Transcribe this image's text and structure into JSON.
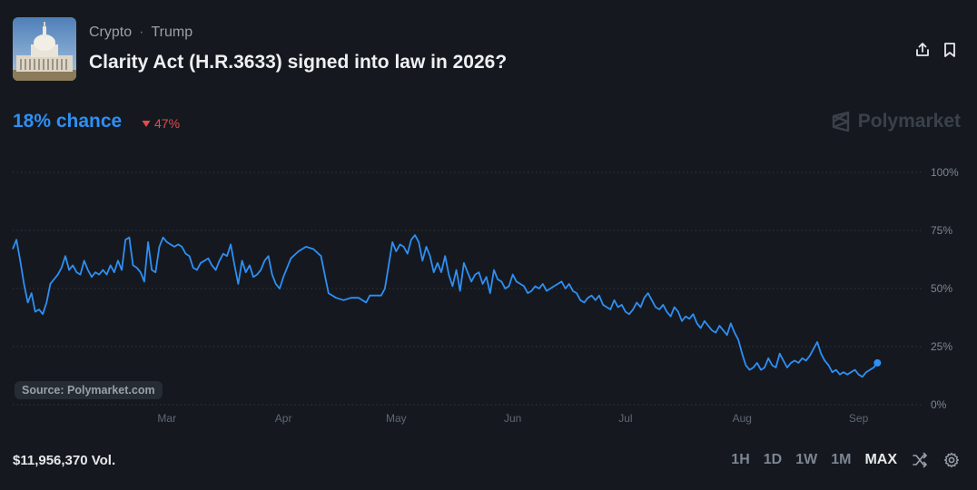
{
  "market": {
    "breadcrumb": [
      "Crypto",
      "Trump"
    ],
    "breadcrumb_separator": "·",
    "title": "Clarity Act (H.R.3633) signed into law in 2026?",
    "chance_label": "18% chance",
    "change_label": "47%",
    "change_direction": "down",
    "brand": "Polymarket",
    "source": "Source: Polymarket.com",
    "volume": "$11,956,370 Vol."
  },
  "icons": {
    "share": "share-icon",
    "bookmark": "bookmark-icon",
    "shuffle": "shuffle-icon",
    "settings": "gear-icon",
    "brand": "polymarket-logo-icon"
  },
  "ranges": [
    "1H",
    "1D",
    "1W",
    "1M",
    "MAX"
  ],
  "active_range": "MAX",
  "colors": {
    "accent": "#2e8ff5",
    "negative": "#e64a4a",
    "background": "#15191f",
    "grid": "#2f353d"
  },
  "chart_data": {
    "type": "line",
    "title": "",
    "xlabel": "",
    "ylabel": "",
    "ylim": [
      0,
      100
    ],
    "y_ticks": [
      "100%",
      "75%",
      "50%",
      "25%",
      "0%"
    ],
    "y_tick_values": [
      100,
      75,
      50,
      25,
      0
    ],
    "x_ticks": [
      "Mar",
      "Apr",
      "May",
      "Jun",
      "Jul",
      "Aug",
      "Sep"
    ],
    "x_tick_dates": [
      "2025-03-01",
      "2025-04-01",
      "2025-05-01",
      "2025-06-01",
      "2025-07-01",
      "2025-08-01",
      "2025-09-01"
    ],
    "grid": true,
    "series": [
      {
        "name": "",
        "x": [
          "2025-01-19",
          "2025-01-20",
          "2025-01-21",
          "2025-01-22",
          "2025-01-23",
          "2025-01-24",
          "2025-01-25",
          "2025-01-26",
          "2025-01-27",
          "2025-01-28",
          "2025-01-29",
          "2025-01-30",
          "2025-01-31",
          "2025-02-01",
          "2025-02-02",
          "2025-02-03",
          "2025-02-04",
          "2025-02-05",
          "2025-02-06",
          "2025-02-07",
          "2025-02-08",
          "2025-02-09",
          "2025-02-10",
          "2025-02-11",
          "2025-02-12",
          "2025-02-13",
          "2025-02-14",
          "2025-02-15",
          "2025-02-16",
          "2025-02-17",
          "2025-02-18",
          "2025-02-19",
          "2025-02-20",
          "2025-02-21",
          "2025-02-22",
          "2025-02-23",
          "2025-02-24",
          "2025-02-25",
          "2025-02-26",
          "2025-02-27",
          "2025-02-28",
          "2025-03-01",
          "2025-03-02",
          "2025-03-03",
          "2025-03-04",
          "2025-03-05",
          "2025-03-06",
          "2025-03-07",
          "2025-03-08",
          "2025-03-09",
          "2025-03-10",
          "2025-03-11",
          "2025-03-12",
          "2025-03-13",
          "2025-03-14",
          "2025-03-15",
          "2025-03-16",
          "2025-03-17",
          "2025-03-18",
          "2025-03-19",
          "2025-03-20",
          "2025-03-21",
          "2025-03-22",
          "2025-03-23",
          "2025-03-24",
          "2025-03-25",
          "2025-03-26",
          "2025-03-27",
          "2025-03-28",
          "2025-03-29",
          "2025-03-30",
          "2025-03-31",
          "2025-04-01",
          "2025-04-03",
          "2025-04-05",
          "2025-04-07",
          "2025-04-09",
          "2025-04-11",
          "2025-04-13",
          "2025-04-15",
          "2025-04-17",
          "2025-04-19",
          "2025-04-21",
          "2025-04-23",
          "2025-04-24",
          "2025-04-25",
          "2025-04-26",
          "2025-04-27",
          "2025-04-28",
          "2025-04-30",
          "2025-05-01",
          "2025-05-02",
          "2025-05-03",
          "2025-05-04",
          "2025-05-05",
          "2025-05-06",
          "2025-05-07",
          "2025-05-08",
          "2025-05-09",
          "2025-05-10",
          "2025-05-11",
          "2025-05-12",
          "2025-05-13",
          "2025-05-14",
          "2025-05-15",
          "2025-05-16",
          "2025-05-17",
          "2025-05-18",
          "2025-05-19",
          "2025-05-20",
          "2025-05-21",
          "2025-05-22",
          "2025-05-23",
          "2025-05-24",
          "2025-05-25",
          "2025-05-26",
          "2025-05-27",
          "2025-05-28",
          "2025-05-29",
          "2025-05-30",
          "2025-05-31",
          "2025-06-01",
          "2025-06-02",
          "2025-06-03",
          "2025-06-04",
          "2025-06-05",
          "2025-06-06",
          "2025-06-07",
          "2025-06-08",
          "2025-06-09",
          "2025-06-10",
          "2025-06-11",
          "2025-06-12",
          "2025-06-13",
          "2025-06-14",
          "2025-06-15",
          "2025-06-16",
          "2025-06-17",
          "2025-06-18",
          "2025-06-19",
          "2025-06-20",
          "2025-06-21",
          "2025-06-22",
          "2025-06-23",
          "2025-06-24",
          "2025-06-25",
          "2025-06-26",
          "2025-06-27",
          "2025-06-28",
          "2025-06-29",
          "2025-06-30",
          "2025-07-01",
          "2025-07-02",
          "2025-07-03",
          "2025-07-04",
          "2025-07-05",
          "2025-07-06",
          "2025-07-07",
          "2025-07-08",
          "2025-07-09",
          "2025-07-10",
          "2025-07-11",
          "2025-07-12",
          "2025-07-13",
          "2025-07-14",
          "2025-07-15",
          "2025-07-16",
          "2025-07-17",
          "2025-07-18",
          "2025-07-19",
          "2025-07-20",
          "2025-07-21",
          "2025-07-22",
          "2025-07-23",
          "2025-07-24",
          "2025-07-25",
          "2025-07-26",
          "2025-07-27",
          "2025-07-28",
          "2025-07-29",
          "2025-07-30",
          "2025-07-31",
          "2025-08-01",
          "2025-08-02",
          "2025-08-03",
          "2025-08-04",
          "2025-08-05",
          "2025-08-06",
          "2025-08-07",
          "2025-08-08",
          "2025-08-09",
          "2025-08-10",
          "2025-08-11",
          "2025-08-12",
          "2025-08-13",
          "2025-08-14",
          "2025-08-15",
          "2025-08-16",
          "2025-08-17",
          "2025-08-18",
          "2025-08-19",
          "2025-08-20",
          "2025-08-21",
          "2025-08-22",
          "2025-08-23",
          "2025-08-24",
          "2025-08-25",
          "2025-08-26",
          "2025-08-27",
          "2025-08-28",
          "2025-08-29",
          "2025-08-30",
          "2025-08-31",
          "2025-09-01",
          "2025-09-02",
          "2025-09-03",
          "2025-09-04",
          "2025-09-05",
          "2025-09-06"
        ],
        "values": [
          67,
          71,
          62,
          52,
          44,
          48,
          40,
          41,
          39,
          44,
          52,
          54,
          56,
          59,
          64,
          58,
          60,
          57,
          56,
          62,
          58,
          55,
          57,
          56,
          58,
          56,
          60,
          57,
          62,
          58,
          71,
          72,
          60,
          59,
          57,
          53,
          70,
          58,
          57,
          68,
          72,
          70,
          69,
          68,
          69,
          68,
          65,
          64,
          59,
          58,
          61,
          62,
          63,
          60,
          58,
          62,
          65,
          64,
          69,
          60,
          52,
          62,
          57,
          60,
          55,
          56,
          58,
          62,
          64,
          56,
          52,
          50,
          55,
          63,
          66,
          68,
          67,
          64,
          48,
          46,
          45,
          46,
          46,
          44,
          47,
          47,
          47,
          47,
          50,
          70,
          66,
          69,
          68,
          65,
          71,
          73,
          70,
          62,
          68,
          64,
          57,
          61,
          57,
          64,
          56,
          51,
          58,
          49,
          61,
          57,
          53,
          56,
          57,
          52,
          55,
          48,
          58,
          54,
          53,
          50,
          51,
          56,
          53,
          52,
          51,
          48,
          49,
          51,
          50,
          52,
          49,
          50,
          51,
          52,
          53,
          50,
          52,
          49,
          48,
          45,
          44,
          46,
          47,
          45,
          47,
          43,
          42,
          41,
          45,
          42,
          43,
          40,
          39,
          41,
          44,
          42,
          46,
          48,
          45,
          42,
          41,
          43,
          40,
          38,
          42,
          40,
          36,
          38,
          37,
          39,
          35,
          33,
          36,
          34,
          32,
          31,
          34,
          32,
          30,
          35,
          31,
          28,
          22,
          17,
          15,
          16,
          18,
          15,
          16,
          20,
          17,
          16,
          22,
          19,
          16,
          18,
          19,
          18,
          20,
          19,
          21,
          24,
          27,
          22,
          19,
          17,
          14,
          15,
          13,
          14,
          13,
          14,
          15,
          13,
          12,
          14,
          15,
          16,
          18
        ]
      }
    ]
  }
}
